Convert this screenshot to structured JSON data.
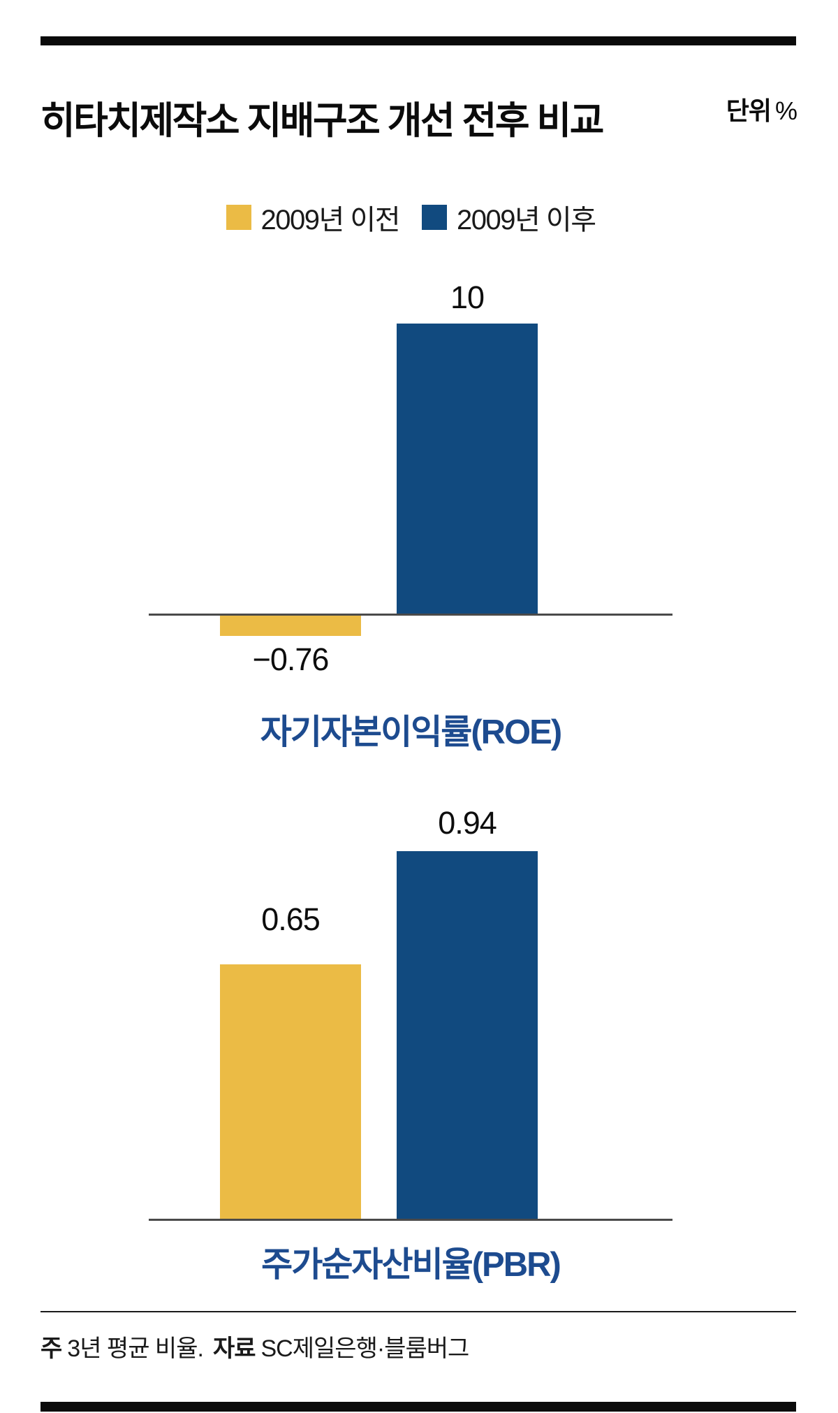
{
  "header": {
    "title": "히타치제작소 지배구조 개선 전후 비교",
    "unit_label": "단위",
    "unit_symbol": "%"
  },
  "legend": {
    "items": [
      {
        "label": "2009년 이전",
        "color": "#EBBB45"
      },
      {
        "label": "2009년 이후",
        "color": "#114A7F"
      }
    ]
  },
  "chart_data": [
    {
      "type": "bar",
      "title": "자기자본이익률(ROE)",
      "categories": [
        "2009년 이전",
        "2009년 이후"
      ],
      "values": [
        -0.76,
        10
      ],
      "labels": [
        "−0.76",
        "10"
      ],
      "series_colors": [
        "#EBBB45",
        "#114A7F"
      ],
      "unit": "%",
      "ylim": [
        -1,
        10.5
      ],
      "grid": false,
      "legend_position": "top"
    },
    {
      "type": "bar",
      "title": "주가순자산비율(PBR)",
      "categories": [
        "2009년 이전",
        "2009년 이후"
      ],
      "values": [
        0.65,
        0.94
      ],
      "labels": [
        "0.65",
        "0.94"
      ],
      "series_colors": [
        "#EBBB45",
        "#114A7F"
      ],
      "unit": "%",
      "ylim": [
        0,
        1.0
      ],
      "grid": false,
      "legend_position": "top"
    }
  ],
  "footer": {
    "note_label": "주",
    "note_text": "3년 평균 비율.",
    "source_label": "자료",
    "source_text": "SC제일은행·블룸버그"
  }
}
